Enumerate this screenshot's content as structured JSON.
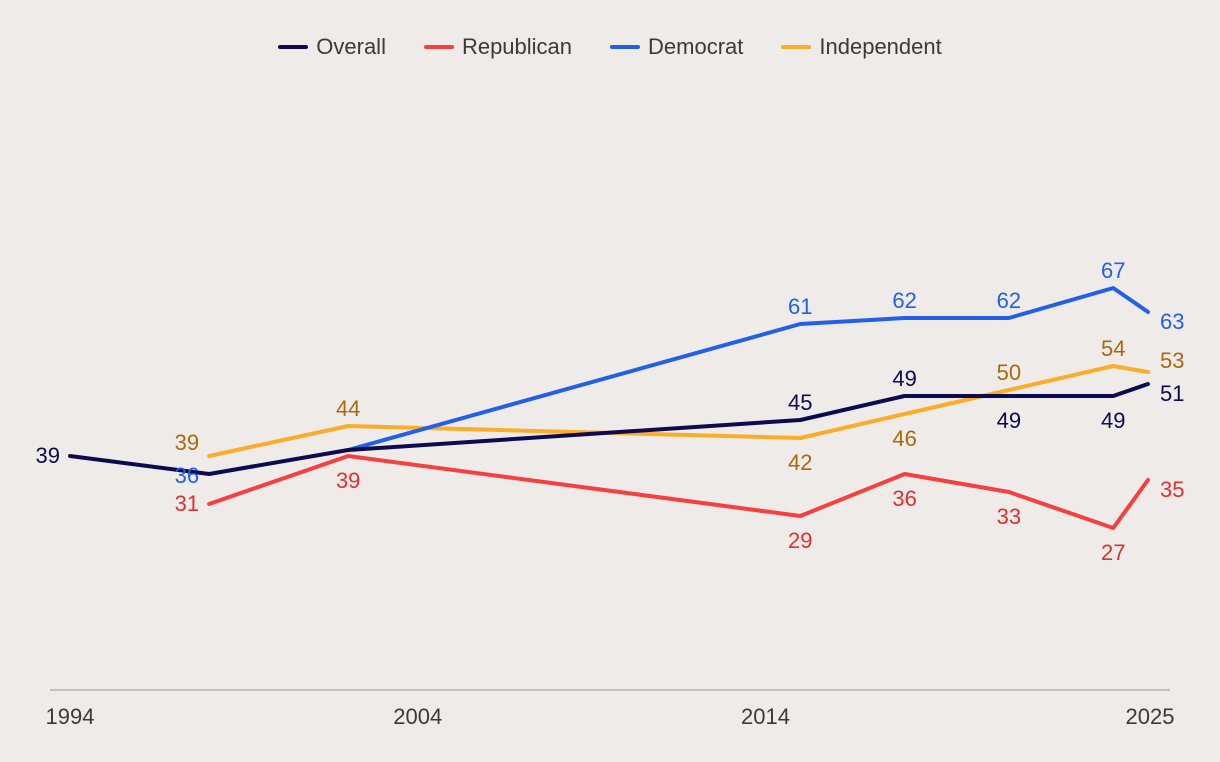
{
  "chart_data": {
    "type": "line",
    "title": "",
    "xlabel": "",
    "ylabel": "",
    "x_ticks": [
      "1994",
      "2004",
      "2014",
      "2025"
    ],
    "xlim": [
      1994,
      2025
    ],
    "ylim": [
      0,
      100
    ],
    "grid": false,
    "legend": "top-center",
    "series": [
      {
        "name": "Overall",
        "color": "#0d0a4f",
        "label_color": "#0d0a4f",
        "points": [
          {
            "x": 1994,
            "y": 39,
            "label": "39",
            "pos": "left"
          },
          {
            "x": 1998,
            "y": 36,
            "label": "",
            "pos": "none"
          },
          {
            "x": 2002,
            "y": 40,
            "label": "",
            "pos": "none"
          },
          {
            "x": 2015,
            "y": 45,
            "label": "45",
            "pos": "above"
          },
          {
            "x": 2018,
            "y": 49,
            "label": "49",
            "pos": "above"
          },
          {
            "x": 2021,
            "y": 49,
            "label": "49",
            "pos": "below"
          },
          {
            "x": 2024,
            "y": 49,
            "label": "49",
            "pos": "below"
          },
          {
            "x": 2025,
            "y": 51,
            "label": "51",
            "pos": "right"
          }
        ]
      },
      {
        "name": "Republican",
        "color": "#f5403f",
        "label_color": "#e0312f",
        "points": [
          {
            "x": 1998,
            "y": 31,
            "label": "31",
            "pos": "left"
          },
          {
            "x": 2002,
            "y": 39,
            "label": "39",
            "pos": "below"
          },
          {
            "x": 2015,
            "y": 29,
            "label": "29",
            "pos": "below"
          },
          {
            "x": 2018,
            "y": 36,
            "label": "36",
            "pos": "below"
          },
          {
            "x": 2021,
            "y": 33,
            "label": "33",
            "pos": "below"
          },
          {
            "x": 2024,
            "y": 27,
            "label": "27",
            "pos": "below"
          },
          {
            "x": 2025,
            "y": 35,
            "label": "35",
            "pos": "right"
          }
        ]
      },
      {
        "name": "Democrat",
        "color": "#2160e8",
        "label_color": "#2160e8",
        "points": [
          {
            "x": 2002,
            "y": 40,
            "label": "",
            "pos": "none"
          },
          {
            "x": 2015,
            "y": 61,
            "label": "61",
            "pos": "above"
          },
          {
            "x": 2018,
            "y": 62,
            "label": "62",
            "pos": "above"
          },
          {
            "x": 2021,
            "y": 62,
            "label": "62",
            "pos": "above"
          },
          {
            "x": 2024,
            "y": 67,
            "label": "67",
            "pos": "above"
          },
          {
            "x": 2025,
            "y": 63,
            "label": "63",
            "pos": "right"
          }
        ]
      },
      {
        "name": "Independent",
        "color": "#fcac2b",
        "label_color": "#a86a0e",
        "points": [
          {
            "x": 1998,
            "y": 39,
            "label": "39",
            "pos": "leftabove"
          },
          {
            "x": 2002,
            "y": 44,
            "label": "44",
            "pos": "above"
          },
          {
            "x": 2015,
            "y": 42,
            "label": "42",
            "pos": "below"
          },
          {
            "x": 2018,
            "y": 46,
            "label": "46",
            "pos": "below"
          },
          {
            "x": 2021,
            "y": 50,
            "label": "50",
            "pos": "above"
          },
          {
            "x": 2024,
            "y": 54,
            "label": "54",
            "pos": "above"
          },
          {
            "x": 2025,
            "y": 53,
            "label": "53",
            "pos": "rightabove"
          }
        ]
      }
    ],
    "annotations": [
      {
        "series": "Democrat",
        "x": 1998,
        "y": 36,
        "label": "36"
      }
    ]
  }
}
